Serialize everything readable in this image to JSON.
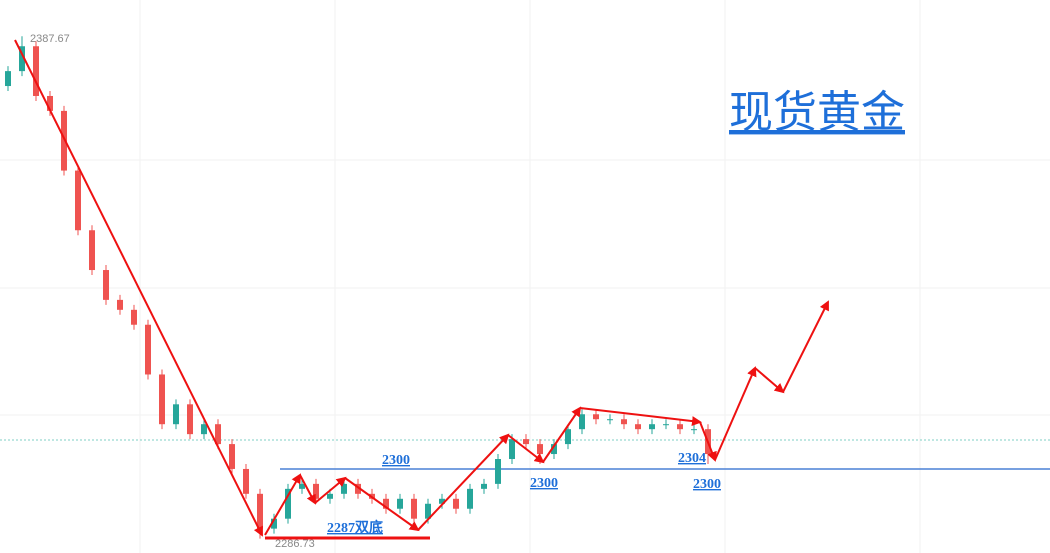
{
  "chart_data": {
    "type": "candlestick",
    "title": "现货黄金",
    "high_label": "2387.67",
    "low_label": "2286.73",
    "annotations": [
      "2300",
      "2300",
      "2304",
      "2300",
      "2287双底"
    ],
    "ylim": [
      2284.1,
      2395.3
    ],
    "up_color": "#26a69a",
    "down_color": "#ef5350",
    "open": [
      2378,
      2381,
      2386,
      2376,
      2373,
      2361,
      2349,
      2341,
      2335,
      2333,
      2330,
      2320,
      2310,
      2314,
      2308,
      2310,
      2306,
      2301,
      2296,
      2289,
      2291,
      2297,
      2298,
      2295,
      2296,
      2298,
      2296,
      2295,
      2293,
      2295,
      2291,
      2294,
      2295,
      2293,
      2297,
      2298,
      2303,
      2307,
      2306,
      2304,
      2306,
      2309,
      2312,
      2311,
      2311,
      2310,
      2309,
      2310,
      2310,
      2309,
      2309
    ],
    "high": [
      2382,
      2388,
      2387,
      2377,
      2374,
      2362,
      2350,
      2342,
      2336,
      2334,
      2331,
      2321,
      2315,
      2315,
      2311,
      2311,
      2307,
      2302,
      2297,
      2292,
      2298,
      2299,
      2299,
      2297,
      2299,
      2299,
      2297,
      2296,
      2296,
      2296,
      2295,
      2296,
      2296,
      2298,
      2299,
      2304,
      2308,
      2308,
      2307,
      2307,
      2310,
      2313,
      2313,
      2312,
      2312,
      2311,
      2311,
      2311,
      2311,
      2310,
      2310
    ],
    "low": [
      2377,
      2380,
      2375,
      2372,
      2360,
      2348,
      2340,
      2334,
      2332,
      2329,
      2319,
      2309,
      2309,
      2307,
      2307,
      2305,
      2300,
      2295,
      2287,
      2288,
      2290,
      2296,
      2294,
      2294,
      2295,
      2295,
      2294,
      2292,
      2292,
      2290,
      2290,
      2293,
      2292,
      2292,
      2296,
      2297,
      2302,
      2305,
      2302,
      2303,
      2305,
      2308,
      2310,
      2310,
      2309,
      2308,
      2308,
      2309,
      2308,
      2308,
      2302
    ],
    "close": [
      2381,
      2386,
      2376,
      2373,
      2361,
      2349,
      2341,
      2335,
      2333,
      2330,
      2320,
      2310,
      2314,
      2308,
      2310,
      2306,
      2301,
      2296,
      2289,
      2291,
      2297,
      2298,
      2295,
      2296,
      2298,
      2296,
      2295,
      2293,
      2295,
      2291,
      2294,
      2295,
      2293,
      2297,
      2298,
      2303,
      2307,
      2306,
      2304,
      2306,
      2309,
      2312,
      2311,
      2311,
      2310,
      2309,
      2310,
      2310,
      2309,
      2309,
      2304
    ]
  }
}
